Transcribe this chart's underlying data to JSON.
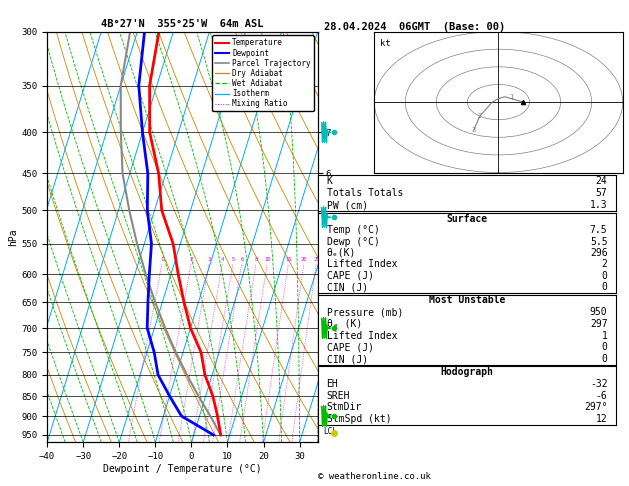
{
  "title_left": "4B°27'N  355°25'W  64m ASL",
  "title_right": "28.04.2024  06GMT  (Base: 00)",
  "xlabel": "Dewpoint / Temperature (°C)",
  "ylabel_left": "hPa",
  "pressure_levels": [
    300,
    350,
    400,
    450,
    500,
    550,
    600,
    650,
    700,
    750,
    800,
    850,
    900,
    950
  ],
  "pressure_min": 300,
  "pressure_max": 970,
  "temp_min": -40,
  "temp_max": 35,
  "temp_data": {
    "pressure": [
      950,
      900,
      850,
      800,
      750,
      700,
      650,
      600,
      550,
      500,
      450,
      400,
      350,
      300
    ],
    "temp": [
      7.5,
      5.0,
      2.0,
      -2.0,
      -5.0,
      -10.0,
      -14.0,
      -18.0,
      -22.0,
      -28.0,
      -32.0,
      -38.0,
      -42.0,
      -44.0
    ]
  },
  "dewp_data": {
    "pressure": [
      950,
      900,
      850,
      800,
      750,
      700,
      650,
      600,
      550,
      500,
      450,
      400,
      350,
      300
    ],
    "dewp": [
      5.5,
      -5.0,
      -10.0,
      -15.0,
      -18.0,
      -22.0,
      -24.0,
      -26.0,
      -28.0,
      -32.0,
      -35.0,
      -40.0,
      -45.0,
      -48.0
    ]
  },
  "parcel_data": {
    "pressure": [
      950,
      900,
      850,
      800,
      750,
      700,
      650,
      600,
      550,
      500,
      450,
      400,
      350,
      300
    ],
    "temp": [
      7.5,
      3.0,
      -2.0,
      -7.0,
      -12.0,
      -17.0,
      -22.0,
      -27.0,
      -32.0,
      -37.0,
      -42.0,
      -46.0,
      -50.0,
      -52.0
    ]
  },
  "isotherm_color": "#00aaff",
  "dry_adiabat_color": "#cc8800",
  "wet_adiabat_color": "#00bb00",
  "mixing_ratio_color": "#dd00dd",
  "temp_color": "#ff0000",
  "dewp_color": "#0000ff",
  "parcel_color": "#888888",
  "mixing_ratio_values": [
    1,
    2,
    3,
    4,
    5,
    6,
    8,
    10,
    15,
    20,
    25
  ],
  "lcl_pressure": 940,
  "info_box": {
    "K": 24,
    "Totals_Totals": 57,
    "PW_cm": 1.3,
    "Surface_Temp": 7.5,
    "Surface_Dewp": 5.5,
    "Surface_theta_e": 296,
    "Lifted_Index": 2,
    "CAPE": 0,
    "CIN": 0,
    "MU_Pressure": 950,
    "MU_theta_e": 297,
    "MU_LI": 1,
    "MU_CAPE": 0,
    "MU_CIN": 0,
    "EH": -32,
    "SREH": -6,
    "StmDir": 297,
    "StmSpd": 12
  },
  "bg_color": "#ffffff",
  "copyright": "© weatheronline.co.uk"
}
